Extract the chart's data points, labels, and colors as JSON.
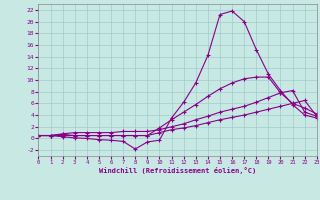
{
  "background_color": "#c8e8e4",
  "grid_color": "#a0cccc",
  "line_color": "#880088",
  "xlim": [
    0,
    23
  ],
  "ylim": [
    -3,
    23
  ],
  "xticks": [
    0,
    1,
    2,
    3,
    4,
    5,
    6,
    7,
    8,
    9,
    10,
    11,
    12,
    13,
    14,
    15,
    16,
    17,
    18,
    19,
    20,
    21,
    22,
    23
  ],
  "yticks": [
    -2,
    0,
    2,
    4,
    6,
    8,
    10,
    12,
    14,
    16,
    18,
    20,
    22
  ],
  "xlabel": "Windchill (Refroidissement éolien,°C)",
  "s1_x": [
    0,
    1,
    2,
    3,
    4,
    5,
    6,
    7,
    8,
    9,
    10,
    11,
    12,
    13,
    14,
    15,
    16,
    17,
    18,
    19,
    20,
    21,
    22,
    23
  ],
  "s1_y": [
    0.5,
    0.5,
    0.3,
    0.1,
    0.0,
    -0.2,
    -0.3,
    -0.5,
    -1.8,
    -0.6,
    -0.3,
    3.5,
    6.2,
    9.5,
    14.2,
    21.2,
    21.8,
    20.0,
    15.2,
    11.0,
    8.2,
    5.8,
    4.0,
    3.5
  ],
  "s2_x": [
    0,
    1,
    2,
    3,
    4,
    5,
    6,
    7,
    8,
    9,
    10,
    11,
    12,
    13,
    14,
    15,
    16,
    17,
    18,
    19,
    20,
    21,
    22,
    23
  ],
  "s2_y": [
    0.5,
    0.5,
    0.7,
    0.5,
    0.5,
    0.5,
    0.5,
    0.5,
    0.5,
    0.5,
    1.8,
    3.2,
    4.5,
    5.8,
    7.2,
    8.5,
    9.5,
    10.2,
    10.5,
    10.5,
    7.8,
    6.0,
    5.2,
    4.2
  ],
  "s3_x": [
    0,
    1,
    2,
    3,
    4,
    5,
    6,
    7,
    8,
    9,
    10,
    11,
    12,
    13,
    14,
    15,
    16,
    17,
    18,
    19,
    20,
    21,
    22,
    23
  ],
  "s3_y": [
    0.5,
    0.5,
    0.8,
    1.0,
    1.0,
    1.0,
    1.0,
    1.2,
    1.2,
    1.2,
    1.5,
    2.0,
    2.5,
    3.2,
    3.8,
    4.5,
    5.0,
    5.5,
    6.2,
    7.0,
    7.8,
    8.2,
    4.5,
    3.8
  ],
  "s4_x": [
    0,
    1,
    2,
    3,
    4,
    5,
    6,
    7,
    8,
    9,
    10,
    11,
    12,
    13,
    14,
    15,
    16,
    17,
    18,
    19,
    20,
    21,
    22,
    23
  ],
  "s4_y": [
    0.5,
    0.5,
    0.5,
    0.5,
    0.5,
    0.5,
    0.5,
    0.5,
    0.5,
    0.5,
    1.0,
    1.5,
    1.8,
    2.2,
    2.7,
    3.2,
    3.6,
    4.0,
    4.5,
    5.0,
    5.5,
    6.0,
    6.5,
    3.8
  ]
}
